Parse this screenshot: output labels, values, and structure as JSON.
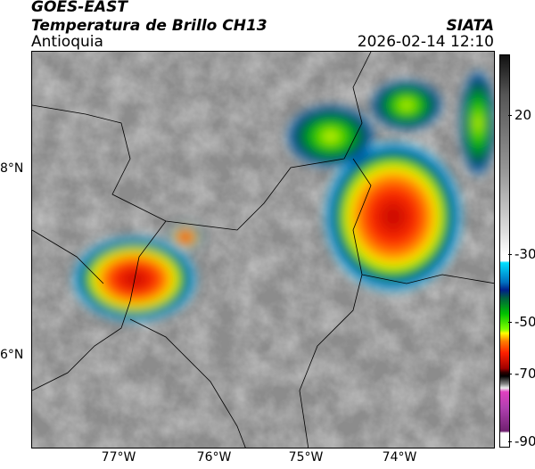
{
  "header": {
    "satellite": "GOES-EAST",
    "product": "Temperatura de Brillo CH13",
    "region": "Antioquia",
    "organization": "SIATA",
    "datetime": "2026-02-14 12:10"
  },
  "colorbar": {
    "ticks": [
      "20",
      "-30",
      "-50",
      "-70",
      "-90"
    ],
    "colors": [
      "#111111",
      "#ffffff",
      "#00e0ff",
      "#00208a",
      "#00c000",
      "#ffff00",
      "#ff2000",
      "#000000",
      "#e040c0",
      "#702070"
    ]
  },
  "axes": {
    "lon_ticks": [
      "77°W",
      "76°W",
      "75°W",
      "74°W"
    ],
    "lat_ticks": [
      "8°N",
      "6°N"
    ]
  }
}
